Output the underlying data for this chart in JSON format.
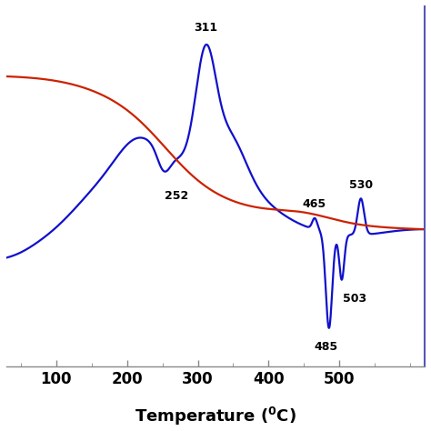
{
  "x_min": 30,
  "x_max": 620,
  "xlabel_fontsize": 13,
  "tick_fontsize": 12,
  "xticks": [
    100,
    200,
    300,
    400,
    500
  ],
  "blue_color": "#1010cc",
  "red_color": "#cc2200",
  "background_color": "#ffffff",
  "right_spine_color": "#5555bb",
  "bottom_spine_color": "#888888"
}
